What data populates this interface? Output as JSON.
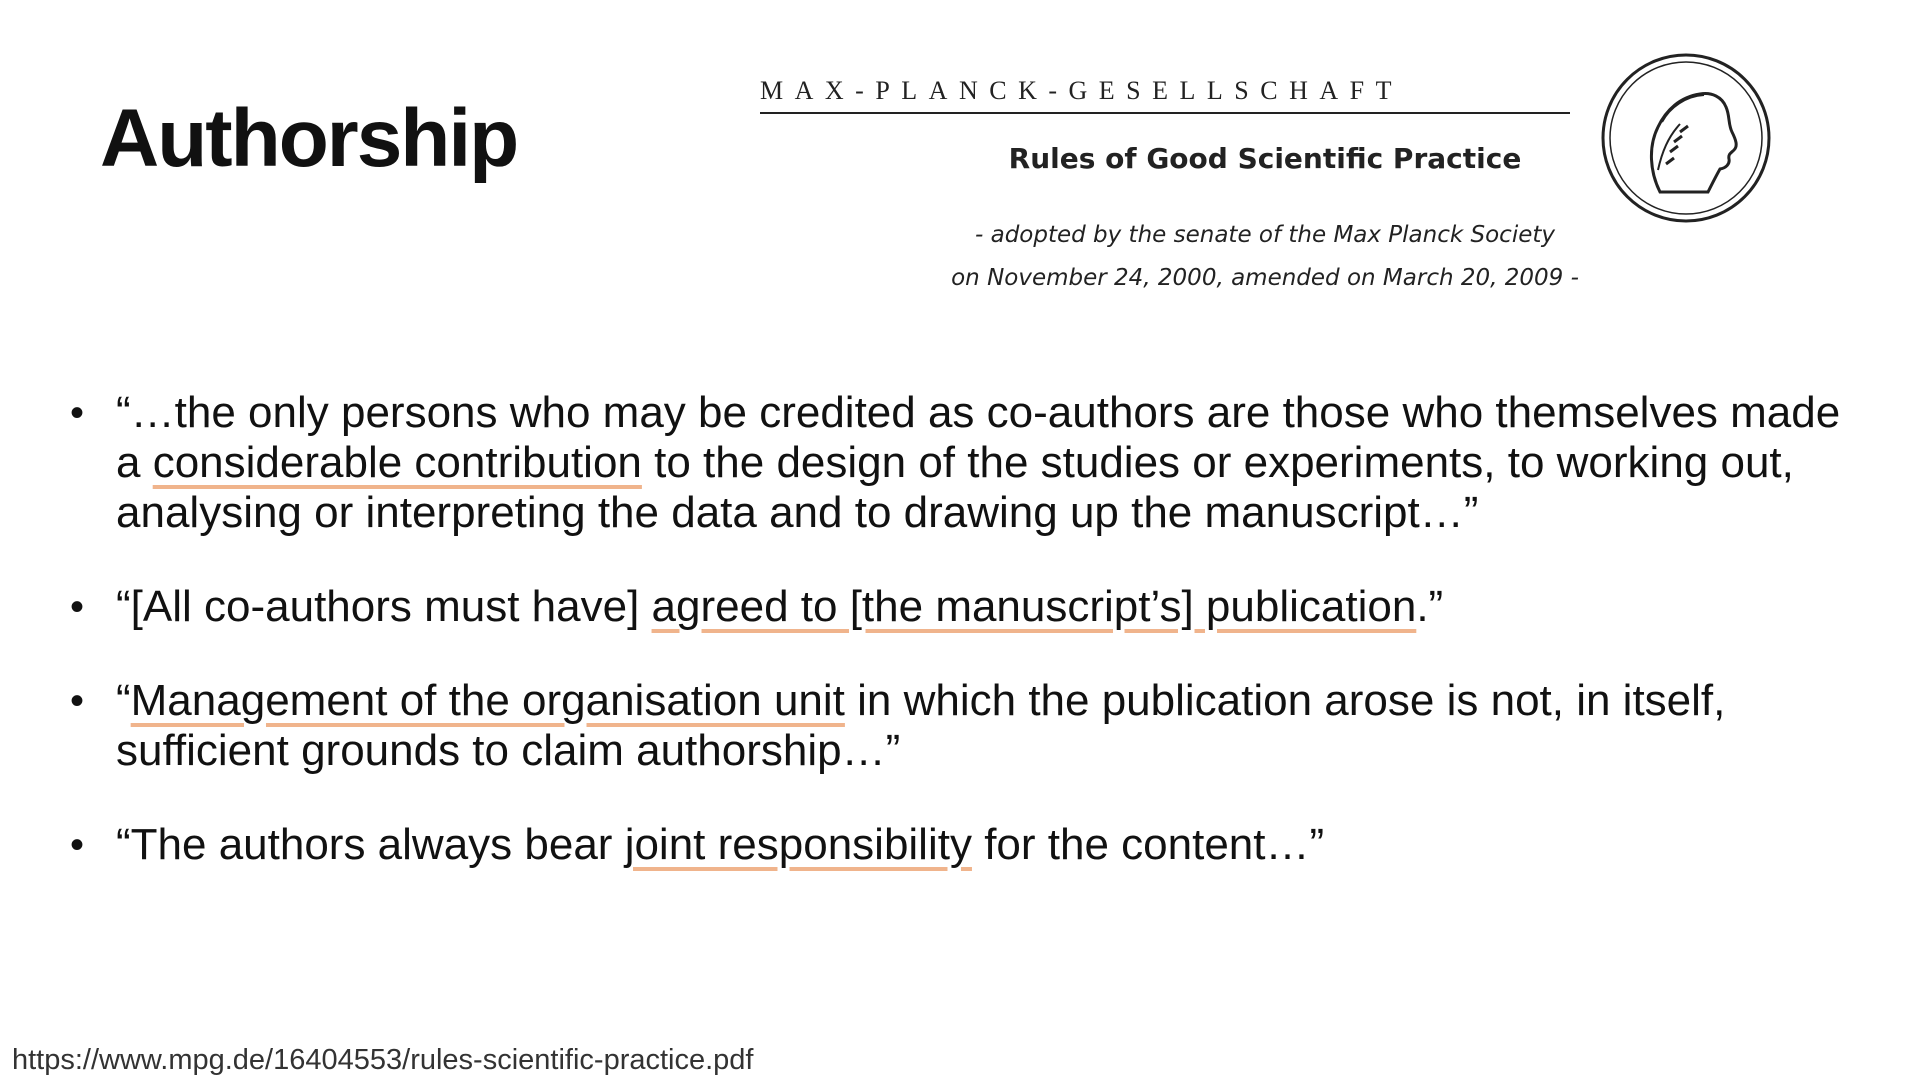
{
  "title": "Authorship",
  "header": {
    "org_name": "MAX-PLANCK-GESELLSCHAFT",
    "doc_title": "Rules of Good Scientific Practice",
    "adopted_line1": "- adopted by the senate of the Max Planck Society",
    "adopted_line2": "on November 24, 2000, amended on March 20, 2009 -"
  },
  "bullets": [
    {
      "before": "“…the only persons who may be credited as co-authors are those who themselves made a ",
      "highlight": "considerable contribution",
      "after": " to the design of the studies or experiments, to working out, analysing or interpreting the data and to drawing up the manuscript…”"
    },
    {
      "before": "“[All co-authors must have] ",
      "highlight": "agreed to [the manuscript’s] publication",
      "after": ".”"
    },
    {
      "before": "“",
      "highlight": "Management of the organisation unit",
      "after": " in which the publication arose is not, in itself, sufficient grounds to claim authorship…”"
    },
    {
      "before": "“The authors always bear ",
      "highlight": "joint responsibility",
      "after": " for the content…”"
    }
  ],
  "source_url": "https://www.mpg.de/16404553/rules-scientific-practice.pdf",
  "colors": {
    "highlight_underline": "#f0b48c",
    "text": "#111111"
  },
  "icons": {
    "seal": "minerva-seal-icon"
  }
}
